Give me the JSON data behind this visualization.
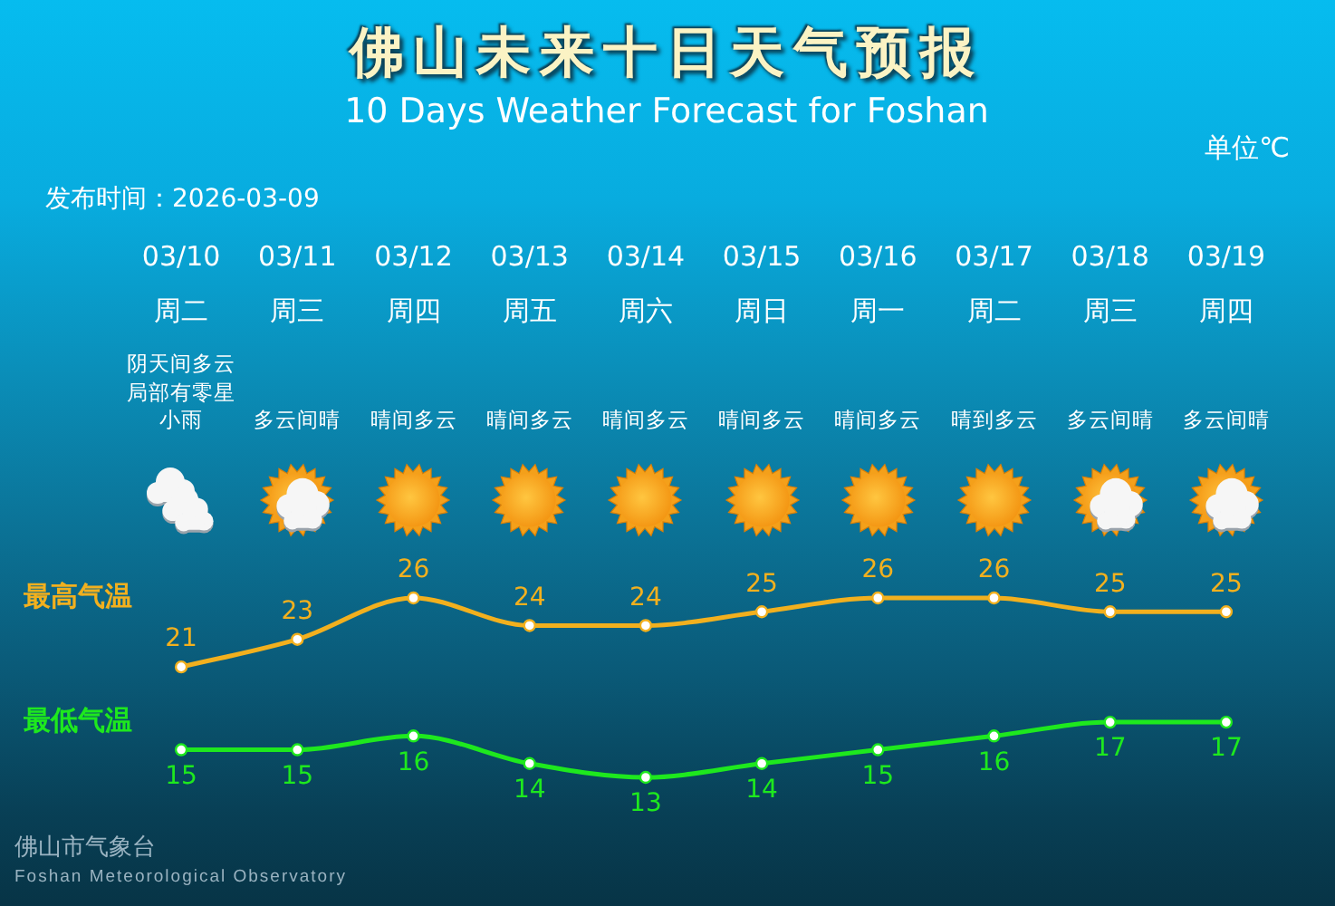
{
  "chart_data": {
    "type": "line",
    "title": "佛山未来十日天气预报",
    "subtitle": "10 Days Weather Forecast for Foshan",
    "ylabel": "单位℃",
    "categories": [
      "03/10",
      "03/11",
      "03/12",
      "03/13",
      "03/14",
      "03/15",
      "03/16",
      "03/17",
      "03/18",
      "03/19"
    ],
    "series": [
      {
        "name": "最高气温",
        "color": "#f2b01e",
        "values": [
          21,
          23,
          26,
          24,
          24,
          25,
          26,
          26,
          25,
          25
        ]
      },
      {
        "name": "最低气温",
        "color": "#1ee81e",
        "values": [
          15,
          15,
          16,
          14,
          13,
          14,
          15,
          16,
          17,
          17
        ]
      }
    ],
    "data_labels": true,
    "marker": "circle",
    "tick_labels": "x",
    "annotations": [
      "周二",
      "周三",
      "周四",
      "周五",
      "周六",
      "周日",
      "周一",
      "周二",
      "周三",
      "周四",
      "阴天间多云局部有零星小雨",
      "多云间晴",
      "晴间多云",
      "晴间多云",
      "晴间多云",
      "晴间多云",
      "晴间多云",
      "晴到多云",
      "多云间晴",
      "多云间晴",
      "发布时间：2026-03-09",
      "佛山市气象台",
      "Foshan Meteorological Observatory"
    ]
  }
}
